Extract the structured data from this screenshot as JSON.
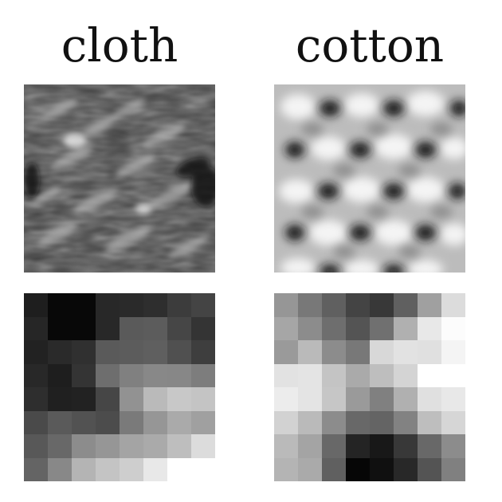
{
  "panels": [
    {
      "label": "cloth",
      "grid_levels": [
        [
          30,
          8,
          8,
          40,
          42,
          46,
          60,
          68
        ],
        [
          38,
          8,
          8,
          40,
          90,
          92,
          70,
          52
        ],
        [
          34,
          42,
          48,
          90,
          92,
          95,
          80,
          62
        ],
        [
          40,
          30,
          52,
          110,
          128,
          136,
          135,
          125
        ],
        [
          46,
          32,
          34,
          70,
          146,
          186,
          200,
          196
        ],
        [
          74,
          90,
          82,
          76,
          122,
          150,
          170,
          160
        ],
        [
          88,
          104,
          140,
          150,
          164,
          170,
          190,
          220
        ],
        [
          100,
          136,
          180,
          196,
          206,
          232,
          255,
          255
        ]
      ]
    },
    {
      "label": "cotton",
      "grid_levels": [
        [
          150,
          120,
          96,
          68,
          56,
          96,
          160,
          220
        ],
        [
          166,
          140,
          110,
          84,
          112,
          176,
          232,
          252
        ],
        [
          154,
          186,
          140,
          120,
          216,
          226,
          224,
          244
        ],
        [
          226,
          228,
          196,
          170,
          190,
          212,
          255,
          255
        ],
        [
          236,
          228,
          198,
          154,
          128,
          176,
          224,
          232
        ],
        [
          210,
          186,
          140,
          104,
          100,
          130,
          190,
          214
        ],
        [
          186,
          164,
          104,
          36,
          24,
          56,
          104,
          140
        ],
        [
          180,
          170,
          96,
          6,
          16,
          40,
          84,
          128
        ]
      ]
    }
  ]
}
